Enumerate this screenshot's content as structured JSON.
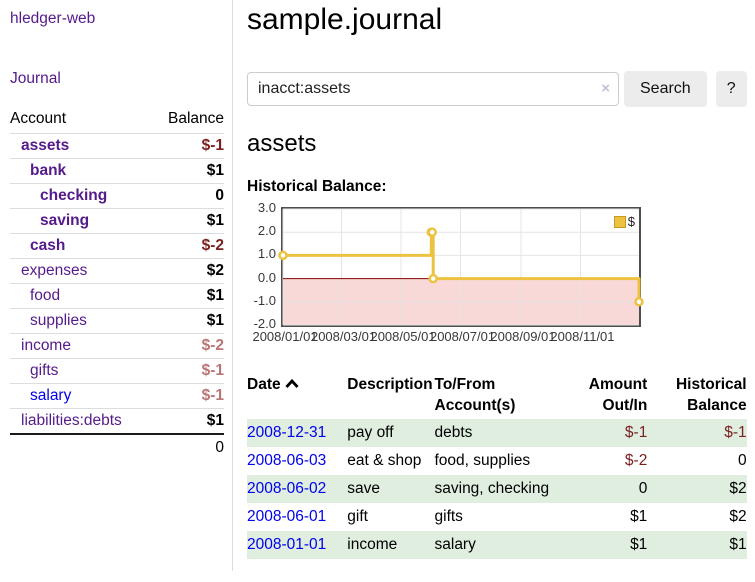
{
  "sidebar": {
    "brand": "hledger-web",
    "journal_link": "Journal",
    "tree_headers": {
      "account": "Account",
      "balance": "Balance"
    },
    "accounts": [
      {
        "name": "assets",
        "balance": "$-1"
      },
      {
        "name": "bank",
        "balance": "$1"
      },
      {
        "name": "checking",
        "balance": "0"
      },
      {
        "name": "saving",
        "balance": "$1"
      },
      {
        "name": "cash",
        "balance": "$-2"
      },
      {
        "name": "expenses",
        "balance": "$2"
      },
      {
        "name": "food",
        "balance": "$1"
      },
      {
        "name": "supplies",
        "balance": "$1"
      },
      {
        "name": "income",
        "balance": "$-2"
      },
      {
        "name": "gifts",
        "balance": "$-1"
      },
      {
        "name": "salary",
        "balance": "$-1"
      },
      {
        "name": "liabilities:debts",
        "balance": "$1"
      }
    ],
    "total": "0"
  },
  "header": {
    "title": "sample.journal"
  },
  "search": {
    "value": "inacct:assets",
    "clear": "×",
    "button": "Search",
    "help": "?"
  },
  "account_page": {
    "heading": "assets",
    "chart_label": "Historical Balance:"
  },
  "chart_data": {
    "type": "line",
    "title": "Historical Balance:",
    "series": [
      {
        "name": "$",
        "color": "#edc240",
        "step": true,
        "points": [
          [
            "2008-01-01",
            1
          ],
          [
            "2008-06-01",
            2
          ],
          [
            "2008-06-02",
            2
          ],
          [
            "2008-06-03",
            0
          ],
          [
            "2008-12-31",
            -1
          ]
        ]
      }
    ],
    "x_range": [
      "2008-01-01",
      "2008-12-31"
    ],
    "ylim": [
      -2,
      3
    ],
    "y_ticks": [
      "3.0",
      "2.0",
      "1.0",
      "0.0",
      "-1.0",
      "-2.0"
    ],
    "x_ticks": [
      "2008/01/01",
      "2008/03/01",
      "2008/05/01",
      "2008/07/01",
      "2008/09/01",
      "2008/11/01"
    ],
    "grid": true,
    "legend_position": "top-right",
    "negative_region_color": "#f9d8d8",
    "zero_line_color": "#8b0000"
  },
  "register": {
    "headers": [
      "Date",
      "Description",
      "To/From Account(s)",
      "Amount Out/In",
      "Historical Balance"
    ],
    "rows": [
      {
        "date": "2008-12-31",
        "description": "pay off",
        "accounts": "debts",
        "amount": "$-1",
        "balance": "$-1"
      },
      {
        "date": "2008-06-03",
        "description": "eat & shop",
        "accounts": "food, supplies",
        "amount": "$-2",
        "balance": "0"
      },
      {
        "date": "2008-06-02",
        "description": "save",
        "accounts": "saving, checking",
        "amount": "0",
        "balance": "$2"
      },
      {
        "date": "2008-06-01",
        "description": "gift",
        "accounts": "gifts",
        "amount": "$1",
        "balance": "$2"
      },
      {
        "date": "2008-01-01",
        "description": "income",
        "accounts": "salary",
        "amount": "$1",
        "balance": "$1"
      }
    ]
  }
}
